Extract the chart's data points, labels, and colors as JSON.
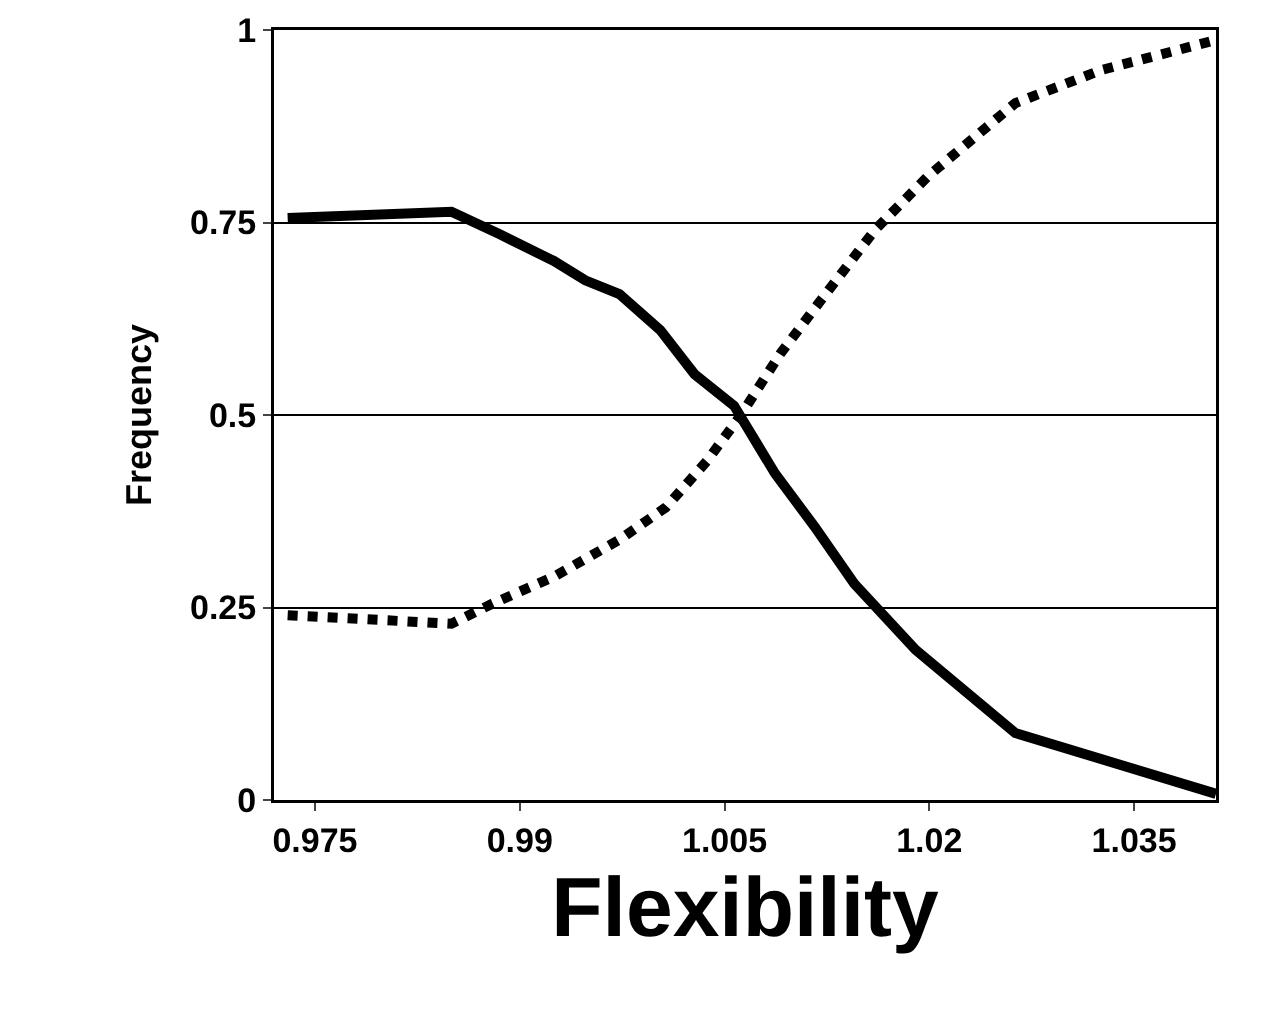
{
  "chart_data": {
    "type": "line",
    "xlabel": "Flexibility",
    "ylabel": "Frequency",
    "xlim": [
      0.972,
      1.041
    ],
    "xticks": [
      0.975,
      0.99,
      1.005,
      1.02,
      1.035
    ],
    "ylim": [
      0,
      1
    ],
    "yticks": [
      0,
      0.25,
      0.5,
      0.75,
      1
    ],
    "grid": "y",
    "marker": "none",
    "series": [
      {
        "color": "#000000",
        "line_style": "solid",
        "x": [
          0.973,
          0.985,
          0.9885,
          0.9925,
          0.9948,
          0.9973,
          1.0003,
          1.0028,
          1.0057,
          1.0087,
          1.0116,
          1.0145,
          1.019,
          1.0263,
          1.041
        ],
        "values": [
          0.756,
          0.764,
          0.735,
          0.7,
          0.675,
          0.657,
          0.61,
          0.553,
          0.512,
          0.424,
          0.355,
          0.281,
          0.195,
          0.087,
          0.008
        ]
      },
      {
        "color": "#000000",
        "line_style": "dotted",
        "x": [
          0.973,
          0.985,
          0.988,
          0.9925,
          0.9973,
          1.0007,
          1.0037,
          1.0062,
          1.0091,
          1.0121,
          1.016,
          1.0199,
          1.0263,
          1.0326,
          1.041
        ],
        "values": [
          0.24,
          0.229,
          0.255,
          0.29,
          0.338,
          0.38,
          0.44,
          0.5,
          0.58,
          0.65,
          0.74,
          0.81,
          0.905,
          0.948,
          0.987
        ]
      }
    ]
  }
}
